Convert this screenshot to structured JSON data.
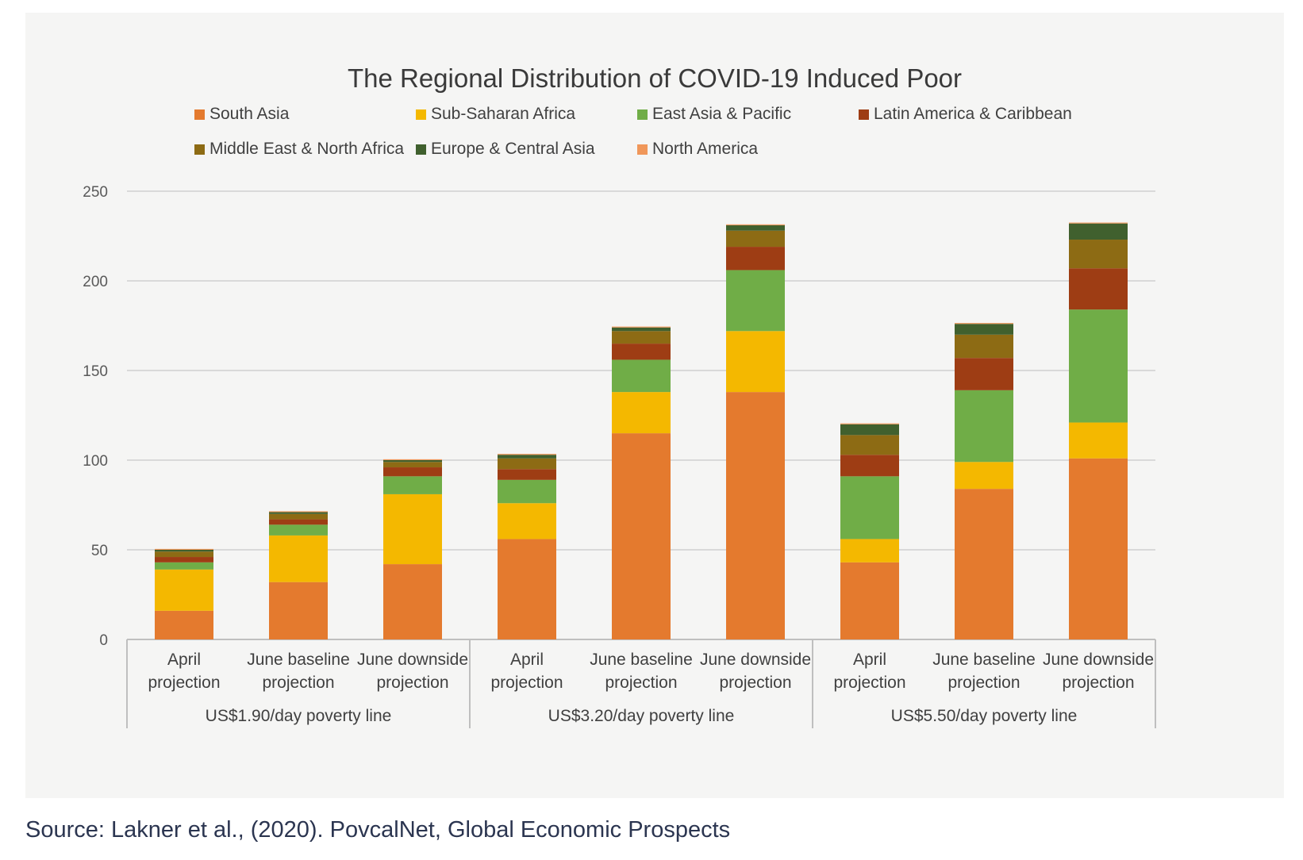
{
  "source_note": "Source: Lakner et al., (2020). PovcalNet, Global Economic Prospects",
  "chart_data": {
    "type": "bar",
    "stacked": true,
    "title": "The Regional Distribution of COVID-19 Induced Poor",
    "xlabel": "",
    "ylabel": "",
    "ylim": [
      0,
      250
    ],
    "yticks": [
      0,
      50,
      100,
      150,
      200,
      250
    ],
    "grid": true,
    "legend_position": "top",
    "groups": [
      {
        "label": "US$1.90/day poverty line",
        "categories": [
          [
            "April",
            "projection"
          ],
          [
            "June baseline",
            "projection"
          ],
          [
            "June downside",
            "projection"
          ]
        ]
      },
      {
        "label": "US$3.20/day poverty line",
        "categories": [
          [
            "April",
            "projection"
          ],
          [
            "June baseline",
            "projection"
          ],
          [
            "June downside",
            "projection"
          ]
        ]
      },
      {
        "label": "US$5.50/day poverty line",
        "categories": [
          [
            "April",
            "projection"
          ],
          [
            "June baseline",
            "projection"
          ],
          [
            "June downside",
            "projection"
          ]
        ]
      }
    ],
    "series": [
      {
        "name": "South Asia",
        "color": "#e47a2e",
        "values": [
          16,
          32,
          42,
          56,
          115,
          138,
          43,
          84,
          101
        ]
      },
      {
        "name": "Sub-Saharan Africa",
        "color": "#f4b800",
        "values": [
          23,
          26,
          39,
          20,
          23,
          34,
          13,
          15,
          20
        ]
      },
      {
        "name": "East Asia & Pacific",
        "color": "#70ad47",
        "values": [
          4,
          6,
          10,
          13,
          18,
          34,
          35,
          40,
          63
        ]
      },
      {
        "name": "Latin America & Caribbean",
        "color": "#9e3d14",
        "values": [
          3,
          3,
          5,
          6,
          9,
          13,
          12,
          18,
          23
        ]
      },
      {
        "name": "Middle East & North Africa",
        "color": "#8d6b14",
        "values": [
          3,
          3,
          3,
          6,
          7,
          9,
          11,
          13,
          16
        ]
      },
      {
        "name": "Europe & Central Asia",
        "color": "#40602e",
        "values": [
          1,
          1,
          1,
          2,
          2,
          3,
          6,
          6,
          9
        ]
      },
      {
        "name": "North America",
        "color": "#f0975a",
        "values": [
          0.5,
          0.5,
          0.5,
          0.5,
          0.5,
          0.5,
          0.5,
          0.5,
          0.5
        ]
      }
    ]
  }
}
